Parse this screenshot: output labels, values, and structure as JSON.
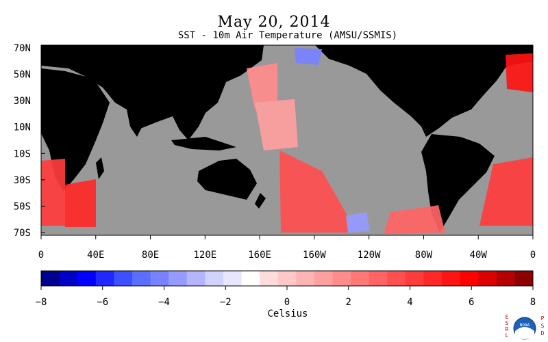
{
  "title": "May 20, 2014",
  "subtitle": "SST - 10m Air Temperature (AMSU/SSMIS)",
  "map": {
    "land_color": "#000000",
    "nodata_color": "#999999",
    "lat_labels": [
      "70N",
      "50N",
      "30N",
      "10N",
      "10S",
      "30S",
      "50S",
      "70S"
    ],
    "lon_labels": [
      "0",
      "40E",
      "80E",
      "120E",
      "160E",
      "160W",
      "120W",
      "80W",
      "40W",
      "0"
    ]
  },
  "colorbar": {
    "tick_labels": [
      "−8",
      "−6",
      "−4",
      "−2",
      "0",
      "2",
      "4",
      "6",
      "8"
    ],
    "unit_label": "Celsius",
    "colors": [
      "#00008e",
      "#0000c8",
      "#0000ff",
      "#1e28ff",
      "#3c50ff",
      "#5a6eff",
      "#7882ff",
      "#969bff",
      "#b4b4ff",
      "#d2d2ff",
      "#e6e6ff",
      "#ffffff",
      "#ffdcdc",
      "#ffc8c8",
      "#ffb4b4",
      "#ffa0a0",
      "#ff8c8c",
      "#ff7878",
      "#ff6464",
      "#ff5050",
      "#ff3c3c",
      "#ff2828",
      "#ff1414",
      "#ff0000",
      "#dc0000",
      "#b40000",
      "#8c0000"
    ]
  },
  "logo": {
    "left_letters": [
      "E",
      "S",
      "R",
      "L"
    ],
    "right_letters": [
      "P",
      "S",
      "D"
    ],
    "badge_text": "NOAA"
  }
}
